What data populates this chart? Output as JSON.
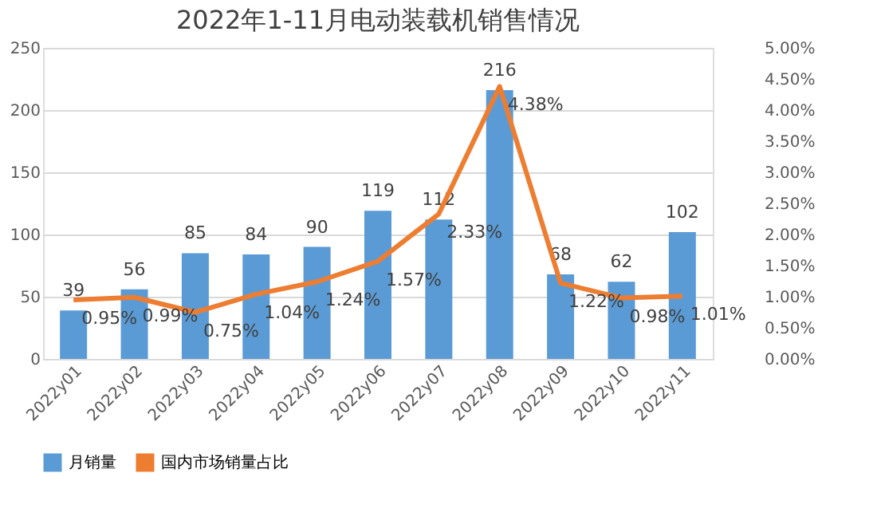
{
  "chart_data": {
    "type": "bar",
    "title": "2022年1-11月电动装载机销售情况",
    "categories": [
      "2022y01",
      "2022y02",
      "2022y03",
      "2022y04",
      "2022y05",
      "2022y06",
      "2022y07",
      "2022y08",
      "2022y09",
      "2022y10",
      "2022y11"
    ],
    "series": [
      {
        "name": "月销量",
        "color": "#5b9bd5",
        "values": [
          39,
          56,
          85,
          84,
          90,
          119,
          112,
          216,
          68,
          62,
          102
        ],
        "value_labels": [
          "39",
          "56",
          "85",
          "84",
          "90",
          "119",
          "112",
          "216",
          "68",
          "62",
          "102"
        ]
      },
      {
        "name": "国内市场销量占比",
        "type": "line",
        "axis": "y2",
        "color": "#ed7d31",
        "values": [
          0.95,
          0.99,
          0.75,
          1.04,
          1.24,
          1.57,
          2.33,
          4.38,
          1.22,
          0.98,
          1.01
        ],
        "value_labels": [
          "0.95%",
          "0.99%",
          "0.75%",
          "1.04%",
          "1.24%",
          "1.57%",
          "2.33%",
          "4.38%",
          "1.22%",
          "0.98%",
          "1.01%"
        ]
      }
    ],
    "ylim": [
      0,
      250
    ],
    "yticks": [
      0,
      50,
      100,
      150,
      200,
      250
    ],
    "y2lim": [
      0,
      5
    ],
    "y2ticks": [
      {
        "value": 0,
        "label": "0.00%"
      },
      {
        "value": 0.5,
        "label": "0.50%"
      },
      {
        "value": 1,
        "label": "1.00%"
      },
      {
        "value": 1.5,
        "label": "1.50%"
      },
      {
        "value": 2,
        "label": "2.00%"
      },
      {
        "value": 2.5,
        "label": "2.50%"
      },
      {
        "value": 3,
        "label": "3.00%"
      },
      {
        "value": 3.5,
        "label": "3.50%"
      },
      {
        "value": 4,
        "label": "4.00%"
      },
      {
        "value": 4.5,
        "label": "4.50%"
      },
      {
        "value": 5,
        "label": "5.00%"
      }
    ],
    "grid": "y",
    "legend": "bottom",
    "marker": "none",
    "line_style": "solid"
  }
}
